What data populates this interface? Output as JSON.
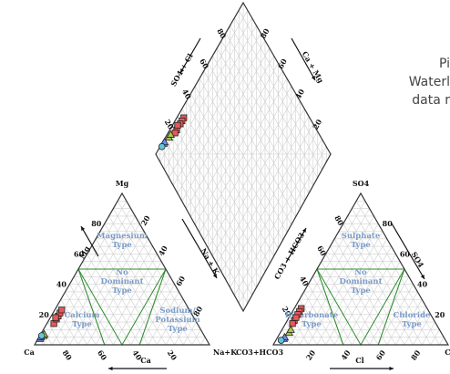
{
  "caption": {
    "line1": "Pi",
    "line2": "Waterl",
    "line3": "data r"
  },
  "chart_data": {
    "type": "scatter",
    "diagram": "piper",
    "cation_triangle": {
      "corners": {
        "top": "Mg",
        "left": "Ca",
        "right": "Na+K"
      },
      "left_axis_label": "Mg",
      "bottom_axis_label": "Ca",
      "right_axis_label": "Na + K",
      "ticks_left": [
        "20",
        "40",
        "60",
        "80"
      ],
      "ticks_bottom": [
        "80",
        "60",
        "40",
        "20"
      ],
      "ticks_right": [
        "20",
        "40",
        "60",
        "80"
      ],
      "zones": [
        {
          "label": [
            "Magnesium",
            "Type"
          ]
        },
        {
          "label": [
            "No",
            "Dominant",
            "Type"
          ]
        },
        {
          "label": [
            "Calcium",
            "Type"
          ]
        },
        {
          "label": [
            "Sodium/",
            "Potassium",
            "Type"
          ]
        }
      ]
    },
    "anion_triangle": {
      "corners": {
        "top": "SO4",
        "left": "CO3+HCO3",
        "right": "Cl"
      },
      "left_axis_label": "CO3 + HCO3",
      "bottom_axis_label": "Cl",
      "right_axis_label": "SO4",
      "ticks_left": [
        "20",
        "40",
        "60",
        "80"
      ],
      "ticks_bottom": [
        "20",
        "40",
        "60",
        "80"
      ],
      "ticks_right": [
        "20",
        "40",
        "60",
        "80"
      ],
      "zones": [
        {
          "label": [
            "Sulphate",
            "Type"
          ]
        },
        {
          "label": [
            "No",
            "Dominant",
            "Type"
          ]
        },
        {
          "label": [
            "Bicarbonate",
            "Type"
          ]
        },
        {
          "label": [
            "Chloride",
            "Type"
          ]
        }
      ]
    },
    "diamond": {
      "left_axis_label": "SO4 + Cl",
      "right_axis_label": "Ca + Mg",
      "ticks_left": [
        "20",
        "40",
        "60",
        "80"
      ],
      "ticks_right": [
        "20",
        "40",
        "60",
        "80"
      ]
    },
    "series_cation": [
      {
        "marker": "square",
        "color": "#e8575a",
        "points": [
          {
            "Ca": 82,
            "Mg": 14,
            "NaK": 4
          },
          {
            "Ca": 79,
            "Mg": 17,
            "NaK": 4
          },
          {
            "Ca": 77,
            "Mg": 19,
            "NaK": 4
          },
          {
            "Ca": 75,
            "Mg": 21,
            "NaK": 4
          },
          {
            "Ca": 73,
            "Mg": 23,
            "NaK": 4
          },
          {
            "Ca": 79,
            "Mg": 18,
            "NaK": 3
          }
        ]
      },
      {
        "marker": "triangle",
        "color": "#a8c84a",
        "points": [
          {
            "Ca": 92,
            "Mg": 6,
            "NaK": 2
          },
          {
            "Ca": 91,
            "Mg": 7,
            "NaK": 2
          }
        ]
      },
      {
        "marker": "triangle",
        "color": "#6f8ce8",
        "points": [
          {
            "Ca": 95,
            "Mg": 4,
            "NaK": 1
          },
          {
            "Ca": 94,
            "Mg": 5,
            "NaK": 1
          }
        ]
      },
      {
        "marker": "circle",
        "color": "#5ec8e0",
        "points": [
          {
            "Ca": 93,
            "Mg": 6,
            "NaK": 1
          }
        ]
      }
    ],
    "series_anion": [
      {
        "marker": "square",
        "color": "#e8575a",
        "points": [
          {
            "HCO3": 72,
            "SO4": 24,
            "Cl": 4
          },
          {
            "HCO3": 74,
            "SO4": 22,
            "Cl": 4
          },
          {
            "HCO3": 76,
            "SO4": 20,
            "Cl": 4
          },
          {
            "HCO3": 80,
            "SO4": 16,
            "Cl": 4
          },
          {
            "HCO3": 82,
            "SO4": 14,
            "Cl": 4
          },
          {
            "HCO3": 78,
            "SO4": 18,
            "Cl": 4
          }
        ]
      },
      {
        "marker": "triangle",
        "color": "#a8c84a",
        "points": [
          {
            "HCO3": 87,
            "SO4": 8,
            "Cl": 5
          },
          {
            "HCO3": 85,
            "SO4": 10,
            "Cl": 5
          }
        ]
      },
      {
        "marker": "triangle",
        "color": "#6f8ce8",
        "points": [
          {
            "HCO3": 92,
            "SO4": 4,
            "Cl": 4
          },
          {
            "HCO3": 91,
            "SO4": 5,
            "Cl": 4
          }
        ]
      },
      {
        "marker": "circle",
        "color": "#5ec8e0",
        "points": [
          {
            "HCO3": 94,
            "SO4": 3,
            "Cl": 3
          }
        ]
      }
    ],
    "colors": {
      "grid": "#cfcfcf",
      "frame": "#333333",
      "zone_line": "#2e8b2e",
      "zone_text": "#7a9cc8"
    }
  }
}
